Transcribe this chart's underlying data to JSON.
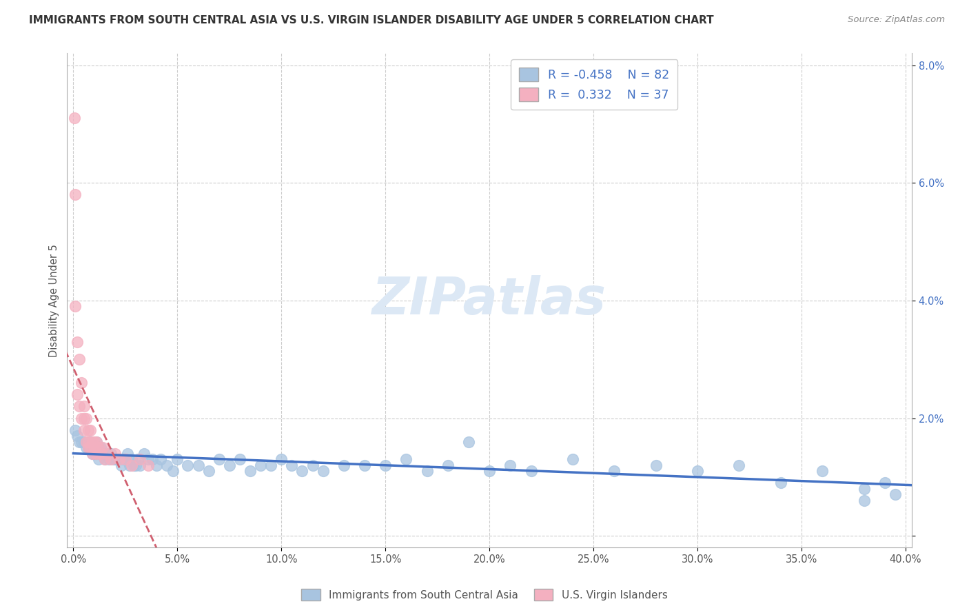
{
  "title": "IMMIGRANTS FROM SOUTH CENTRAL ASIA VS U.S. VIRGIN ISLANDER DISABILITY AGE UNDER 5 CORRELATION CHART",
  "source": "Source: ZipAtlas.com",
  "ylabel": "Disability Age Under 5",
  "xlim": [
    -0.003,
    0.403
  ],
  "ylim": [
    -0.002,
    0.082
  ],
  "xtick_vals": [
    0.0,
    0.05,
    0.1,
    0.15,
    0.2,
    0.25,
    0.3,
    0.35,
    0.4
  ],
  "ytick_vals": [
    0.0,
    0.02,
    0.04,
    0.06,
    0.08
  ],
  "xticklabels": [
    "0.0%",
    "5.0%",
    "10.0%",
    "15.0%",
    "20.0%",
    "25.0%",
    "30.0%",
    "35.0%",
    "40.0%"
  ],
  "yticklabels_right": [
    "",
    "2.0%",
    "4.0%",
    "6.0%",
    "8.0%"
  ],
  "blue_R": -0.458,
  "blue_N": 82,
  "pink_R": 0.332,
  "pink_N": 37,
  "blue_dot_color": "#a8c4e0",
  "pink_dot_color": "#f4b0c0",
  "blue_line_color": "#4472c4",
  "pink_line_color": "#d06070",
  "legend_color": "#4472c4",
  "watermark_color": "#dce8f5",
  "blue_series_label": "Immigrants from South Central Asia",
  "pink_series_label": "U.S. Virgin Islanders",
  "blue_x": [
    0.001,
    0.002,
    0.003,
    0.004,
    0.005,
    0.006,
    0.007,
    0.008,
    0.008,
    0.009,
    0.009,
    0.01,
    0.01,
    0.011,
    0.011,
    0.012,
    0.012,
    0.013,
    0.013,
    0.014,
    0.015,
    0.015,
    0.016,
    0.017,
    0.018,
    0.019,
    0.02,
    0.021,
    0.022,
    0.023,
    0.024,
    0.025,
    0.026,
    0.027,
    0.028,
    0.029,
    0.03,
    0.031,
    0.032,
    0.034,
    0.036,
    0.038,
    0.04,
    0.042,
    0.045,
    0.048,
    0.05,
    0.055,
    0.06,
    0.065,
    0.07,
    0.075,
    0.08,
    0.085,
    0.09,
    0.095,
    0.1,
    0.105,
    0.11,
    0.115,
    0.12,
    0.13,
    0.14,
    0.15,
    0.16,
    0.17,
    0.18,
    0.19,
    0.2,
    0.21,
    0.22,
    0.24,
    0.26,
    0.28,
    0.3,
    0.32,
    0.34,
    0.36,
    0.38,
    0.39,
    0.395,
    0.38
  ],
  "blue_y": [
    0.018,
    0.017,
    0.016,
    0.016,
    0.016,
    0.015,
    0.015,
    0.016,
    0.015,
    0.015,
    0.014,
    0.014,
    0.015,
    0.016,
    0.014,
    0.015,
    0.013,
    0.014,
    0.015,
    0.014,
    0.014,
    0.013,
    0.014,
    0.013,
    0.014,
    0.013,
    0.013,
    0.013,
    0.013,
    0.012,
    0.013,
    0.013,
    0.014,
    0.012,
    0.013,
    0.012,
    0.012,
    0.013,
    0.012,
    0.014,
    0.013,
    0.013,
    0.012,
    0.013,
    0.012,
    0.011,
    0.013,
    0.012,
    0.012,
    0.011,
    0.013,
    0.012,
    0.013,
    0.011,
    0.012,
    0.012,
    0.013,
    0.012,
    0.011,
    0.012,
    0.011,
    0.012,
    0.012,
    0.012,
    0.013,
    0.011,
    0.012,
    0.016,
    0.011,
    0.012,
    0.011,
    0.013,
    0.011,
    0.012,
    0.011,
    0.012,
    0.009,
    0.011,
    0.008,
    0.009,
    0.007,
    0.006
  ],
  "pink_x": [
    0.0005,
    0.001,
    0.001,
    0.002,
    0.002,
    0.003,
    0.003,
    0.004,
    0.004,
    0.005,
    0.005,
    0.005,
    0.006,
    0.006,
    0.007,
    0.007,
    0.007,
    0.008,
    0.008,
    0.009,
    0.009,
    0.01,
    0.01,
    0.011,
    0.011,
    0.012,
    0.013,
    0.014,
    0.015,
    0.016,
    0.018,
    0.02,
    0.022,
    0.025,
    0.028,
    0.032,
    0.036
  ],
  "pink_y": [
    0.071,
    0.058,
    0.039,
    0.033,
    0.024,
    0.03,
    0.022,
    0.026,
    0.02,
    0.022,
    0.02,
    0.018,
    0.02,
    0.016,
    0.018,
    0.016,
    0.015,
    0.018,
    0.015,
    0.016,
    0.014,
    0.016,
    0.015,
    0.016,
    0.014,
    0.015,
    0.014,
    0.015,
    0.013,
    0.014,
    0.013,
    0.014,
    0.013,
    0.013,
    0.012,
    0.013,
    0.012
  ]
}
